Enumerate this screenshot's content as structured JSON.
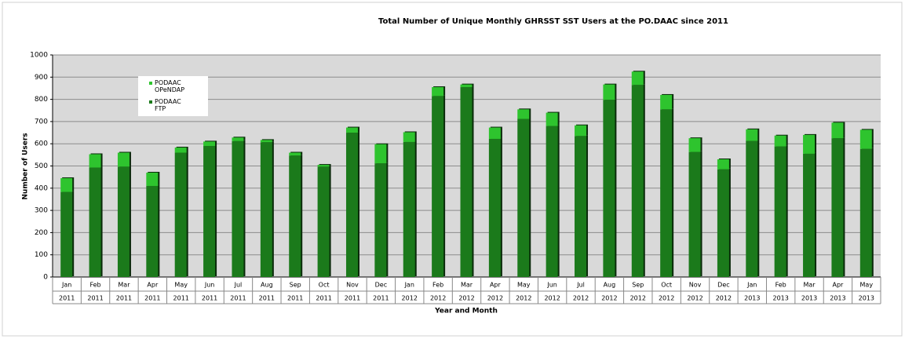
{
  "chart_data": {
    "type": "stacked_bar",
    "title": "Total Number of Unique Monthly GHRSST SST Users at the PO.DAAC since 2011",
    "x_label": "Year and Month",
    "y_label": "Number of Users",
    "categories": [
      [
        "Jan",
        "2011"
      ],
      [
        "Feb",
        "2011"
      ],
      [
        "Mar",
        "2011"
      ],
      [
        "Apr",
        "2011"
      ],
      [
        "May",
        "2011"
      ],
      [
        "Jun",
        "2011"
      ],
      [
        "Jul",
        "2011"
      ],
      [
        "Aug",
        "2011"
      ],
      [
        "Sep",
        "2011"
      ],
      [
        "Oct",
        "2011"
      ],
      [
        "Nov",
        "2011"
      ],
      [
        "Dec",
        "2011"
      ],
      [
        "Jan",
        "2012"
      ],
      [
        "Feb",
        "2012"
      ],
      [
        "Mar",
        "2012"
      ],
      [
        "Apr",
        "2012"
      ],
      [
        "May",
        "2012"
      ],
      [
        "Jun",
        "2012"
      ],
      [
        "Jul",
        "2012"
      ],
      [
        "Aug",
        "2012"
      ],
      [
        "Sep",
        "2012"
      ],
      [
        "Oct",
        "2012"
      ],
      [
        "Nov",
        "2012"
      ],
      [
        "Dec",
        "2012"
      ],
      [
        "Jan",
        "2013"
      ],
      [
        "Feb",
        "2013"
      ],
      [
        "Mar",
        "2013"
      ],
      [
        "Apr",
        "2013"
      ],
      [
        "May",
        "2013"
      ]
    ],
    "series": [
      {
        "name": "PODAAC FTP",
        "color": "#1b7a1b",
        "values": [
          383,
          493,
          497,
          410,
          560,
          590,
          612,
          607,
          547,
          497,
          650,
          512,
          608,
          815,
          855,
          622,
          712,
          680,
          635,
          798,
          865,
          755,
          563,
          485,
          613,
          588,
          555,
          625,
          577
        ]
      },
      {
        "name": "PODAAC OPeNDAP",
        "color": "#2ec42e",
        "values": [
          62,
          60,
          63,
          60,
          23,
          20,
          16,
          10,
          13,
          8,
          23,
          86,
          44,
          40,
          12,
          51,
          43,
          60,
          48,
          69,
          60,
          65,
          62,
          45,
          52,
          49,
          85,
          70,
          86
        ]
      }
    ],
    "ylim": [
      0,
      1000
    ],
    "yticks": [
      0,
      100,
      200,
      300,
      400,
      500,
      600,
      700,
      800,
      900,
      1000
    ],
    "grid": true,
    "legend": "top-left"
  }
}
